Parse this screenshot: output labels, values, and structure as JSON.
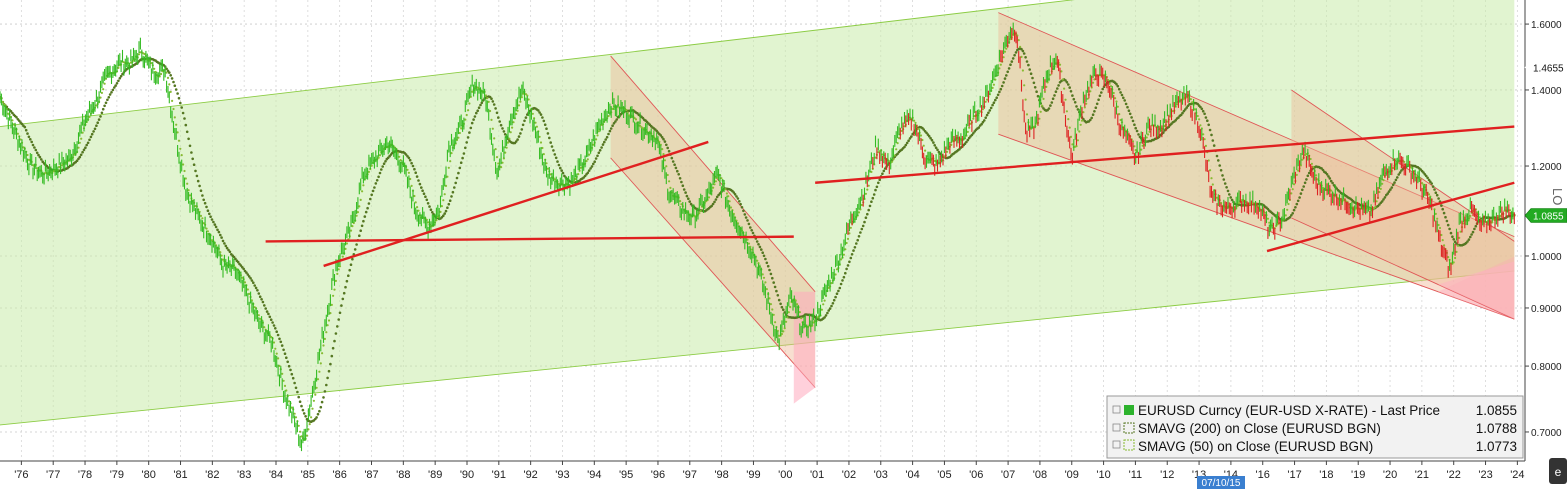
{
  "chart_data": {
    "type": "line",
    "y_scale": "log",
    "ylim": [
      0.66,
      1.68
    ],
    "xlim": [
      1975.3,
      2025.25
    ],
    "x_ticks": [
      "'76",
      "'77",
      "'78",
      "'79",
      "'80",
      "'81",
      "'82",
      "'83",
      "'84",
      "'85",
      "'86",
      "'87",
      "'88",
      "'89",
      "'90",
      "'91",
      "'92",
      "'93",
      "'94",
      "'95",
      "'96",
      "'97",
      "'98",
      "'99",
      "'00",
      "'01",
      "'02",
      "'03",
      "'04",
      "'05",
      "'06",
      "'07",
      "'08",
      "'09",
      "'10",
      "'11",
      "'12",
      "'13",
      "'14",
      "'16",
      "'17",
      "'18",
      "'19",
      "'20",
      "'21",
      "'22",
      "'23",
      "'24"
    ],
    "y_ticks": [
      "0.7000",
      "0.8000",
      "0.9000",
      "1.0000",
      "1.2000",
      "1.4000",
      "1.6000"
    ],
    "crosshair_date_label": "07/10/15",
    "side_label": "LO",
    "price_flags": [
      {
        "value": 1.4655,
        "text": "1.4655",
        "color": "#ffffff"
      },
      {
        "value": 1.0855,
        "text": "1.0855",
        "color": "#22aa22"
      }
    ],
    "series": [
      {
        "name": "EURUSD Curncy (EUR-USD X-RATE) - Last Price",
        "last": "1.0855",
        "color": "#33bb22",
        "points": [
          [
            1975.3,
            1.38
          ],
          [
            1975.7,
            1.3
          ],
          [
            1976.3,
            1.2
          ],
          [
            1976.7,
            1.18
          ],
          [
            1977.2,
            1.2
          ],
          [
            1977.6,
            1.22
          ],
          [
            1978.1,
            1.32
          ],
          [
            1978.5,
            1.38
          ],
          [
            1978.8,
            1.44
          ],
          [
            1979.2,
            1.48
          ],
          [
            1979.6,
            1.48
          ],
          [
            1979.9,
            1.52
          ],
          [
            1980.3,
            1.45
          ],
          [
            1980.7,
            1.46
          ],
          [
            1981.0,
            1.3
          ],
          [
            1981.4,
            1.14
          ],
          [
            1981.8,
            1.08
          ],
          [
            1982.2,
            1.04
          ],
          [
            1982.6,
            0.98
          ],
          [
            1983.0,
            0.97
          ],
          [
            1983.4,
            0.92
          ],
          [
            1983.8,
            0.87
          ],
          [
            1984.2,
            0.84
          ],
          [
            1984.6,
            0.76
          ],
          [
            1984.9,
            0.72
          ],
          [
            1985.2,
            0.68
          ],
          [
            1985.5,
            0.75
          ],
          [
            1985.9,
            0.86
          ],
          [
            1986.3,
            0.98
          ],
          [
            1986.8,
            1.06
          ],
          [
            1987.2,
            1.18
          ],
          [
            1987.6,
            1.22
          ],
          [
            1988.0,
            1.26
          ],
          [
            1988.5,
            1.2
          ],
          [
            1988.9,
            1.1
          ],
          [
            1989.3,
            1.06
          ],
          [
            1989.7,
            1.1
          ],
          [
            1990.0,
            1.25
          ],
          [
            1990.4,
            1.3
          ],
          [
            1990.8,
            1.42
          ],
          [
            1991.2,
            1.38
          ],
          [
            1991.6,
            1.18
          ],
          [
            1992.0,
            1.32
          ],
          [
            1992.4,
            1.4
          ],
          [
            1992.8,
            1.3
          ],
          [
            1993.2,
            1.18
          ],
          [
            1993.6,
            1.16
          ],
          [
            1994.0,
            1.16
          ],
          [
            1994.5,
            1.22
          ],
          [
            1994.9,
            1.3
          ],
          [
            1995.3,
            1.36
          ],
          [
            1995.8,
            1.34
          ],
          [
            1996.3,
            1.3
          ],
          [
            1996.8,
            1.27
          ],
          [
            1997.2,
            1.14
          ],
          [
            1997.6,
            1.1
          ],
          [
            1998.0,
            1.08
          ],
          [
            1998.4,
            1.12
          ],
          [
            1998.8,
            1.18
          ],
          [
            1999.2,
            1.1
          ],
          [
            1999.6,
            1.05
          ],
          [
            2000.0,
            1.0
          ],
          [
            2000.4,
            0.92
          ],
          [
            2000.8,
            0.84
          ],
          [
            2001.2,
            0.92
          ],
          [
            2001.6,
            0.86
          ],
          [
            2002.0,
            0.88
          ],
          [
            2002.4,
            0.94
          ],
          [
            2002.8,
            1.0
          ],
          [
            2003.2,
            1.08
          ],
          [
            2003.6,
            1.14
          ],
          [
            2004.0,
            1.25
          ],
          [
            2004.4,
            1.2
          ],
          [
            2004.8,
            1.3
          ],
          [
            2005.2,
            1.32
          ],
          [
            2005.6,
            1.22
          ],
          [
            2006.0,
            1.2
          ],
          [
            2006.4,
            1.26
          ],
          [
            2006.8,
            1.27
          ],
          [
            2007.2,
            1.33
          ],
          [
            2007.6,
            1.38
          ],
          [
            2008.0,
            1.48
          ],
          [
            2008.4,
            1.58
          ],
          [
            2008.6,
            1.58
          ],
          [
            2008.9,
            1.28
          ],
          [
            2009.2,
            1.3
          ],
          [
            2009.6,
            1.45
          ],
          [
            2009.9,
            1.5
          ],
          [
            2010.4,
            1.22
          ],
          [
            2010.8,
            1.38
          ],
          [
            2011.2,
            1.45
          ],
          [
            2011.6,
            1.42
          ],
          [
            2012.0,
            1.3
          ],
          [
            2012.5,
            1.22
          ],
          [
            2012.9,
            1.3
          ],
          [
            2013.3,
            1.3
          ],
          [
            2013.8,
            1.36
          ],
          [
            2014.2,
            1.38
          ],
          [
            2014.6,
            1.3
          ],
          [
            2015.0,
            1.12
          ],
          [
            2015.5,
            1.1
          ],
          [
            2016.0,
            1.12
          ],
          [
            2016.5,
            1.11
          ],
          [
            2016.9,
            1.05
          ],
          [
            2017.3,
            1.08
          ],
          [
            2017.7,
            1.18
          ],
          [
            2018.0,
            1.24
          ],
          [
            2018.4,
            1.16
          ],
          [
            2018.8,
            1.14
          ],
          [
            2019.3,
            1.12
          ],
          [
            2019.8,
            1.1
          ],
          [
            2020.2,
            1.09
          ],
          [
            2020.6,
            1.18
          ],
          [
            2021.0,
            1.22
          ],
          [
            2021.4,
            1.2
          ],
          [
            2021.8,
            1.16
          ],
          [
            2022.2,
            1.1
          ],
          [
            2022.5,
            1.02
          ],
          [
            2022.8,
            0.97
          ],
          [
            2023.1,
            1.07
          ],
          [
            2023.5,
            1.1
          ],
          [
            2023.8,
            1.06
          ],
          [
            2024.2,
            1.08
          ],
          [
            2024.6,
            1.1
          ],
          [
            2024.9,
            1.0855
          ]
        ]
      },
      {
        "name": "SMAVG (200) on Close (EURUSD BGN)",
        "last": "1.0788",
        "color": "#557722",
        "sma": 200
      },
      {
        "name": "SMAVG (50) on Close (EURUSD BGN)",
        "last": "1.0773",
        "color": "#88bb33",
        "sma": 50
      }
    ],
    "channels": [
      {
        "kind": "green",
        "upper": [
          [
            1975.3,
            1.3
          ],
          [
            2012.0,
            1.7
          ]
        ],
        "lower": [
          [
            1975.3,
            0.71
          ],
          [
            2024.9,
            0.97
          ]
        ]
      },
      {
        "kind": "orange",
        "upper": [
          [
            1995.3,
            1.5
          ],
          [
            2002.0,
            0.93
          ]
        ],
        "lower": [
          [
            1995.3,
            1.22
          ],
          [
            2000.5,
            0.85
          ]
        ],
        "ext_to": 2001.3
      },
      {
        "kind": "orange",
        "upper": [
          [
            2008.4,
            1.62
          ],
          [
            2024.9,
            1.04
          ]
        ],
        "lower": [
          [
            2008.0,
            1.28
          ],
          [
            2024.9,
            0.88
          ]
        ]
      },
      {
        "kind": "orange",
        "upper": [
          [
            2017.6,
            1.4
          ],
          [
            2024.9,
            1.03
          ]
        ],
        "lower": [
          [
            2017.6,
            1.08
          ],
          [
            2024.9,
            0.88
          ]
        ]
      }
    ],
    "trend_lines": [
      [
        [
          1984.0,
          1.03
        ],
        [
          2001.3,
          1.04
        ]
      ],
      [
        [
          1985.9,
          0.98
        ],
        [
          1998.5,
          1.26
        ]
      ],
      [
        [
          2002.0,
          1.16
        ],
        [
          2024.9,
          1.3
        ]
      ],
      [
        [
          2016.8,
          1.01
        ],
        [
          2024.9,
          1.16
        ]
      ]
    ],
    "legend": {
      "placement": "bottom-right"
    }
  }
}
